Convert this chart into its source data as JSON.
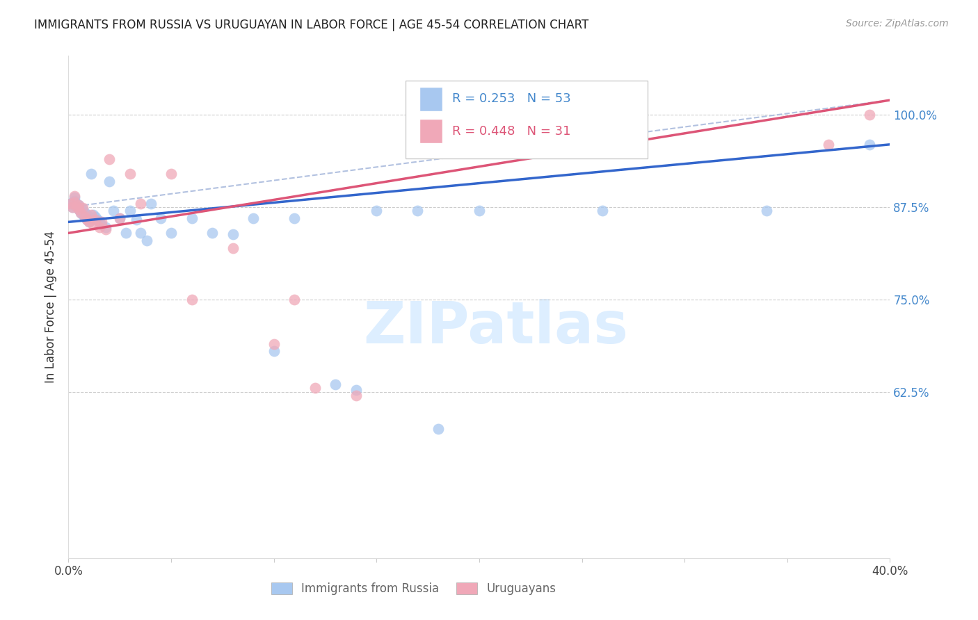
{
  "title": "IMMIGRANTS FROM RUSSIA VS URUGUAYAN IN LABOR FORCE | AGE 45-54 CORRELATION CHART",
  "source": "Source: ZipAtlas.com",
  "ylabel": "In Labor Force | Age 45-54",
  "xlim": [
    0.0,
    0.4
  ],
  "ylim": [
    0.4,
    1.08
  ],
  "xticks": [
    0.0,
    0.05,
    0.1,
    0.15,
    0.2,
    0.25,
    0.3,
    0.35,
    0.4
  ],
  "xticklabels": [
    "0.0%",
    "",
    "",
    "",
    "",
    "",
    "",
    "",
    "40.0%"
  ],
  "yticks_right": [
    0.625,
    0.75,
    0.875,
    1.0
  ],
  "yticklabels_right": [
    "62.5%",
    "75.0%",
    "87.5%",
    "100.0%"
  ],
  "blue_color": "#a8c8f0",
  "pink_color": "#f0a8b8",
  "blue_line_color": "#3366cc",
  "pink_line_color": "#dd5577",
  "dash_color": "#aabbdd",
  "watermark_color": "#ddeeff",
  "legend_blue_r": "R = 0.253",
  "legend_blue_n": "N = 53",
  "legend_pink_r": "R = 0.448",
  "legend_pink_n": "N = 31",
  "legend_blue_label": "Immigrants from Russia",
  "legend_pink_label": "Uruguayans",
  "blue_x": [
    0.001,
    0.002,
    0.002,
    0.003,
    0.003,
    0.003,
    0.004,
    0.004,
    0.005,
    0.005,
    0.006,
    0.006,
    0.007,
    0.007,
    0.008,
    0.008,
    0.009,
    0.009,
    0.01,
    0.01,
    0.011,
    0.012,
    0.013,
    0.014,
    0.015,
    0.016,
    0.018,
    0.02,
    0.022,
    0.025,
    0.028,
    0.03,
    0.033,
    0.035,
    0.038,
    0.04,
    0.045,
    0.05,
    0.06,
    0.07,
    0.08,
    0.09,
    0.1,
    0.11,
    0.13,
    0.14,
    0.15,
    0.17,
    0.18,
    0.2,
    0.26,
    0.34,
    0.39
  ],
  "blue_y": [
    0.88,
    0.875,
    0.882,
    0.878,
    0.884,
    0.888,
    0.876,
    0.88,
    0.872,
    0.878,
    0.868,
    0.874,
    0.865,
    0.872,
    0.862,
    0.868,
    0.858,
    0.865,
    0.855,
    0.862,
    0.92,
    0.865,
    0.862,
    0.858,
    0.855,
    0.852,
    0.848,
    0.91,
    0.87,
    0.86,
    0.84,
    0.87,
    0.858,
    0.84,
    0.83,
    0.88,
    0.86,
    0.84,
    0.86,
    0.84,
    0.838,
    0.86,
    0.68,
    0.86,
    0.635,
    0.628,
    0.87,
    0.87,
    0.575,
    0.87,
    0.87,
    0.87,
    0.96
  ],
  "pink_x": [
    0.001,
    0.002,
    0.003,
    0.003,
    0.004,
    0.005,
    0.005,
    0.006,
    0.007,
    0.008,
    0.009,
    0.01,
    0.011,
    0.012,
    0.013,
    0.015,
    0.016,
    0.018,
    0.02,
    0.025,
    0.03,
    0.035,
    0.05,
    0.06,
    0.08,
    0.1,
    0.11,
    0.12,
    0.14,
    0.37,
    0.39
  ],
  "pink_y": [
    0.88,
    0.875,
    0.882,
    0.89,
    0.876,
    0.872,
    0.878,
    0.868,
    0.874,
    0.862,
    0.858,
    0.855,
    0.865,
    0.852,
    0.858,
    0.848,
    0.855,
    0.845,
    0.94,
    0.86,
    0.92,
    0.88,
    0.92,
    0.75,
    0.82,
    0.69,
    0.75,
    0.63,
    0.62,
    0.96,
    1.0
  ]
}
